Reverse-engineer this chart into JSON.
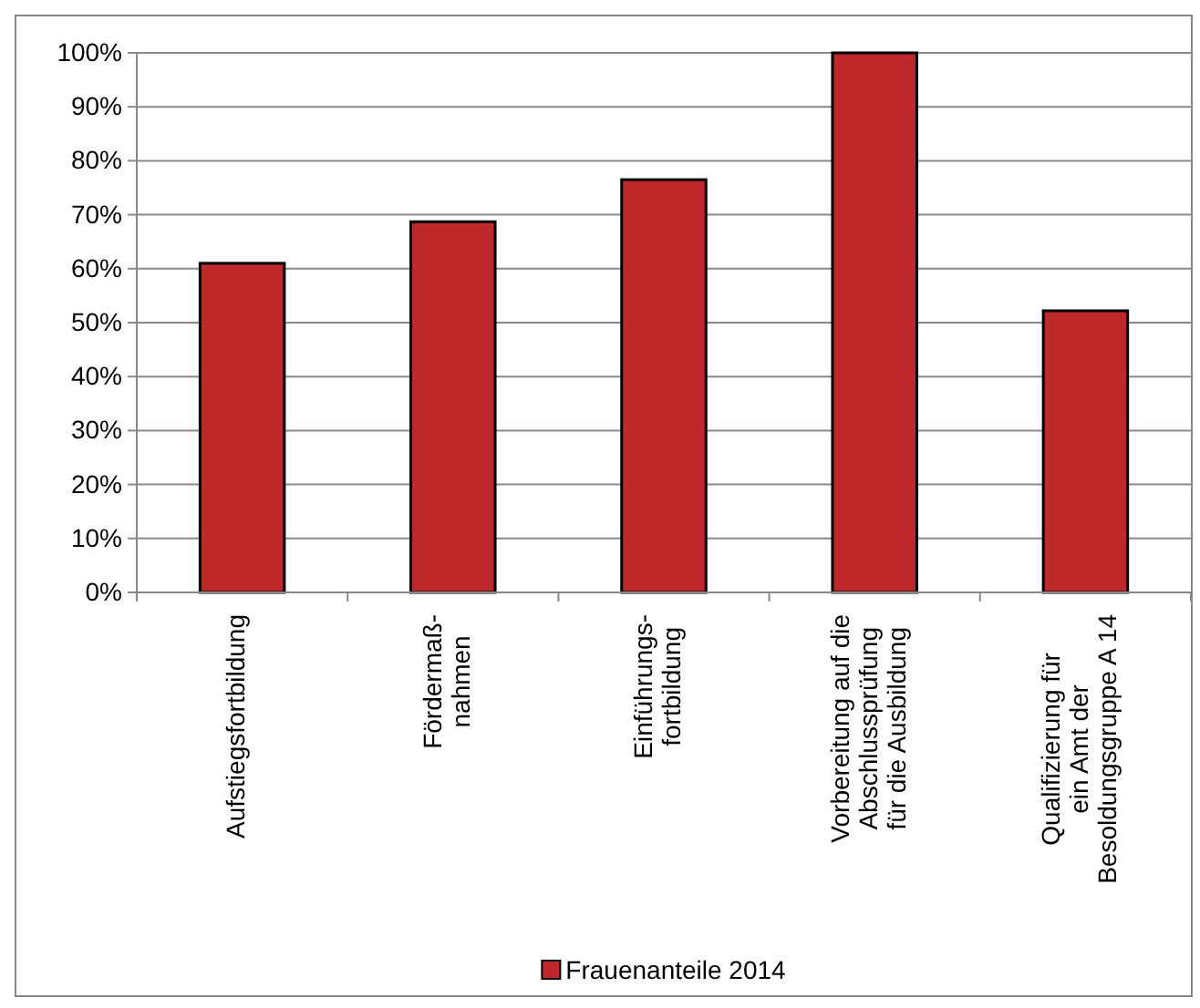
{
  "chart_data": {
    "type": "bar",
    "categories": [
      "Aufstiegsfortbildung",
      "Fördermaß-\nnahmen",
      "Einführungs-\nfortbildung",
      "Vorbereitung auf die\nAbschlussprüfung\nfür die Ausbildung",
      "Qualifizierung für\nein Amt der\nBesoldungsgruppe A  14"
    ],
    "series": [
      {
        "name": "Frauenanteile 2014",
        "color": "#c0292b",
        "values": [
          61,
          68.7,
          76.5,
          100,
          52.2
        ]
      }
    ],
    "ylim": [
      0,
      100
    ],
    "yticks": [
      {
        "value": 0,
        "label": "0%"
      },
      {
        "value": 10,
        "label": "10%"
      },
      {
        "value": 20,
        "label": "20%"
      },
      {
        "value": 30,
        "label": "30%"
      },
      {
        "value": 40,
        "label": "40%"
      },
      {
        "value": 50,
        "label": "50%"
      },
      {
        "value": 60,
        "label": "60%"
      },
      {
        "value": 70,
        "label": "70%"
      },
      {
        "value": 80,
        "label": "80%"
      },
      {
        "value": 90,
        "label": "90%"
      },
      {
        "value": 100,
        "label": "100%"
      }
    ],
    "grid": "y",
    "legend": "bottom"
  }
}
